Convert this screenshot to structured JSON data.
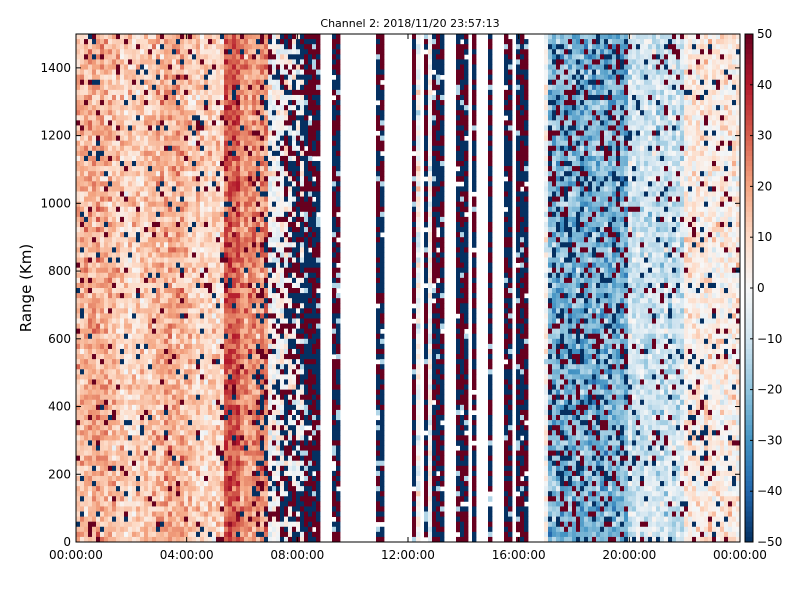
{
  "chart_data": {
    "type": "heatmap",
    "title": "Channel 2: 2018/11/20 23:57:13",
    "xlabel": "",
    "ylabel": "Range (Km)",
    "x_ticks": [
      "00:00:00",
      "04:00:00",
      "08:00:00",
      "12:00:00",
      "16:00:00",
      "20:00:00",
      "00:00:00"
    ],
    "x_range_hours": [
      0,
      24
    ],
    "y_ticks": [
      0,
      200,
      400,
      600,
      800,
      1000,
      1200,
      1400
    ],
    "ylim": [
      0,
      1500
    ],
    "colorbar": {
      "ticks": [
        50,
        40,
        30,
        20,
        10,
        0,
        -10,
        -20,
        -30,
        -40,
        -50
      ],
      "range": [
        -50,
        50
      ],
      "colormap": "RdBu_r",
      "low_color": "#053061",
      "mid_color": "#f7f7f7",
      "high_color": "#67001f"
    },
    "grid": false,
    "gaps_hours": [
      [
        8.8,
        9.2
      ],
      [
        9.6,
        10.9
      ],
      [
        11.2,
        12.2
      ],
      [
        12.45,
        12.55
      ],
      [
        13.3,
        13.8
      ],
      [
        14.1,
        14.3
      ],
      [
        14.5,
        14.9
      ],
      [
        15.1,
        15.4
      ],
      [
        15.7,
        15.9
      ],
      [
        16.3,
        16.9
      ]
    ],
    "dense_hours": [
      [
        9.2,
        9.35
      ],
      [
        9.4,
        9.55
      ],
      [
        10.9,
        11.1
      ],
      [
        12.2,
        12.35
      ],
      [
        12.6,
        12.75
      ],
      [
        12.8,
        13.3
      ],
      [
        13.8,
        14.1
      ],
      [
        14.3,
        14.5
      ],
      [
        14.9,
        15.1
      ],
      [
        15.4,
        15.7
      ],
      [
        15.9,
        16.3
      ]
    ],
    "hot_band_hours": [
      5.3,
      6.0
    ]
  }
}
